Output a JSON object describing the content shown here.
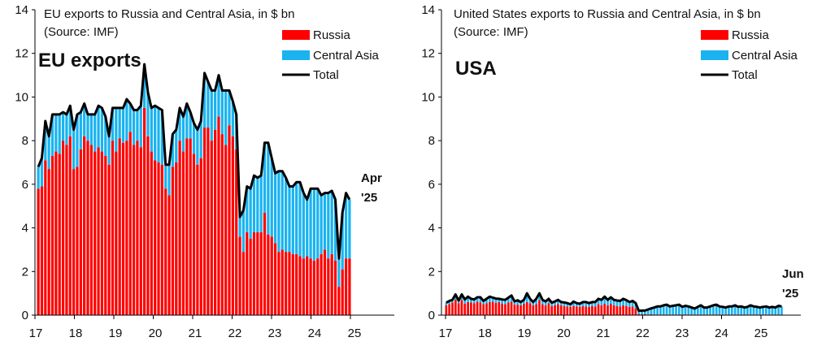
{
  "chart_data": [
    {
      "type": "bar",
      "stacked": true,
      "title": "EU exports to Russia and Central Asia, in $ bn",
      "subtitle": "(Source: IMF)",
      "panel_label": "EU exports",
      "end_label": [
        "Apr",
        "'25"
      ],
      "ylim": [
        0,
        14
      ],
      "yticks": [
        "0",
        "2",
        "4",
        "6",
        "8",
        "10",
        "12",
        "14"
      ],
      "xticks": [
        "17",
        "18",
        "19",
        "20",
        "21",
        "22",
        "23",
        "24",
        "25"
      ],
      "legend": {
        "position": "top-right",
        "entries": [
          "Russia",
          "Central Asia",
          "Total"
        ]
      },
      "series": [
        {
          "name": "Russia",
          "color": "#ff0000",
          "values": [
            5.8,
            5.9,
            7.1,
            6.7,
            7.3,
            7.5,
            7.4,
            8.0,
            7.8,
            8.2,
            6.7,
            6.8,
            7.6,
            8.2,
            8.0,
            7.8,
            7.5,
            7.7,
            7.5,
            7.3,
            6.9,
            8.0,
            7.5,
            8.1,
            7.9,
            8.0,
            8.4,
            7.8,
            8.0,
            7.7,
            9.5,
            8.2,
            7.5,
            7.1,
            7.0,
            6.9,
            5.8,
            5.5,
            6.8,
            7.0,
            8.0,
            7.5,
            8.1,
            8.1,
            7.4,
            6.9,
            7.2,
            8.6,
            8.6,
            8.0,
            8.5,
            9.1,
            8.3,
            7.8,
            8.7,
            8.2,
            7.6,
            3.6,
            2.9,
            3.8,
            3.5,
            3.8,
            3.8,
            3.8,
            4.7,
            3.7,
            3.6,
            3.3,
            2.9,
            3.0,
            2.9,
            2.9,
            2.8,
            2.8,
            2.7,
            2.6,
            2.7,
            2.6,
            2.5,
            2.6,
            2.8,
            3.0,
            2.6,
            2.8,
            2.5,
            1.3,
            2.1,
            2.6,
            2.6
          ]
        },
        {
          "name": "Central Asia",
          "color": "#1ab3f0",
          "values": [
            1.0,
            1.3,
            1.8,
            1.5,
            1.9,
            1.7,
            1.8,
            1.3,
            1.4,
            1.4,
            1.8,
            2.4,
            1.7,
            1.5,
            1.2,
            1.4,
            1.7,
            1.9,
            2.0,
            1.8,
            1.3,
            1.5,
            2.0,
            1.4,
            1.6,
            1.9,
            1.3,
            1.6,
            1.4,
            1.9,
            2.0,
            2.0,
            2.0,
            2.5,
            2.5,
            2.5,
            1.1,
            1.4,
            1.5,
            1.5,
            1.5,
            1.6,
            1.6,
            1.2,
            1.4,
            1.6,
            1.7,
            2.5,
            2.1,
            2.3,
            1.8,
            1.9,
            2.0,
            2.5,
            1.6,
            1.6,
            1.6,
            0.9,
            1.9,
            2.1,
            2.3,
            2.6,
            2.5,
            2.6,
            3.2,
            4.2,
            3.6,
            3.2,
            3.7,
            3.6,
            3.4,
            3.0,
            3.1,
            3.3,
            3.4,
            3.0,
            2.6,
            3.2,
            3.3,
            3.2,
            2.7,
            2.6,
            3.0,
            2.9,
            2.8,
            1.3,
            2.6,
            3.0,
            2.7
          ]
        },
        {
          "name": "Total",
          "color": "#000000",
          "values": [
            6.8,
            7.2,
            8.9,
            8.2,
            9.2,
            9.2,
            9.2,
            9.3,
            9.2,
            9.6,
            8.5,
            9.2,
            9.3,
            9.7,
            9.2,
            9.2,
            9.2,
            9.6,
            9.5,
            9.1,
            8.2,
            9.5,
            9.5,
            9.5,
            9.5,
            9.9,
            9.7,
            9.4,
            9.4,
            9.6,
            11.5,
            10.2,
            9.5,
            9.6,
            9.5,
            9.4,
            6.9,
            6.9,
            8.3,
            8.5,
            9.5,
            9.1,
            9.7,
            9.3,
            8.8,
            8.5,
            8.9,
            11.1,
            10.7,
            10.3,
            10.3,
            11.0,
            10.3,
            10.3,
            10.3,
            9.8,
            9.2,
            4.5,
            4.8,
            5.9,
            5.8,
            6.4,
            6.3,
            6.4,
            7.9,
            7.9,
            7.2,
            6.5,
            6.6,
            6.6,
            6.3,
            5.9,
            5.9,
            6.1,
            6.1,
            5.6,
            5.3,
            5.8,
            5.8,
            5.8,
            5.5,
            5.6,
            5.6,
            5.7,
            5.3,
            2.6,
            4.7,
            5.6,
            5.3
          ]
        }
      ]
    },
    {
      "type": "bar",
      "stacked": true,
      "title": "United States exports to Russia and Central Asia, in $ bn",
      "subtitle": "(Source: IMF)",
      "panel_label": "USA",
      "end_label": [
        "Jun",
        "'25"
      ],
      "ylim": [
        0,
        14
      ],
      "yticks": [
        "0",
        "2",
        "4",
        "6",
        "8",
        "10",
        "12",
        "14"
      ],
      "xticks": [
        "17",
        "18",
        "19",
        "20",
        "21",
        "22",
        "23",
        "24",
        "25"
      ],
      "legend": {
        "position": "top-right",
        "entries": [
          "Russia",
          "Central Asia",
          "Total"
        ]
      },
      "series": [
        {
          "name": "Russia",
          "color": "#ff0000",
          "values": [
            0.45,
            0.5,
            0.58,
            0.72,
            0.55,
            0.7,
            0.52,
            0.6,
            0.58,
            0.55,
            0.62,
            0.58,
            0.5,
            0.55,
            0.6,
            0.62,
            0.56,
            0.6,
            0.52,
            0.5,
            0.58,
            0.62,
            0.48,
            0.48,
            0.45,
            0.52,
            0.6,
            0.55,
            0.45,
            0.5,
            0.7,
            0.5,
            0.45,
            0.55,
            0.42,
            0.45,
            0.5,
            0.45,
            0.42,
            0.4,
            0.38,
            0.42,
            0.4,
            0.38,
            0.42,
            0.4,
            0.38,
            0.42,
            0.4,
            0.5,
            0.45,
            0.52,
            0.45,
            0.52,
            0.45,
            0.42,
            0.4,
            0.45,
            0.42,
            0.38,
            0.4,
            0.3,
            0.05,
            0.04,
            0.04,
            0.03,
            0.04,
            0.03,
            0.03,
            0.03,
            0.03,
            0.03,
            0.03,
            0.03,
            0.03,
            0.03,
            0.03,
            0.03,
            0.03,
            0.03,
            0.03,
            0.03,
            0.03,
            0.03,
            0.03,
            0.03,
            0.03,
            0.03,
            0.03,
            0.03,
            0.03,
            0.03,
            0.03,
            0.03,
            0.03,
            0.03,
            0.03,
            0.03,
            0.03,
            0.03,
            0.03,
            0.03,
            0.03,
            0.03,
            0.03,
            0.03,
            0.03,
            0.03,
            0.03
          ]
        },
        {
          "name": "Central Asia",
          "color": "#1ab3f0",
          "values": [
            0.12,
            0.15,
            0.12,
            0.23,
            0.12,
            0.25,
            0.2,
            0.25,
            0.17,
            0.17,
            0.2,
            0.24,
            0.15,
            0.2,
            0.25,
            0.18,
            0.2,
            0.15,
            0.2,
            0.2,
            0.22,
            0.28,
            0.15,
            0.2,
            0.15,
            0.18,
            0.4,
            0.2,
            0.15,
            0.25,
            0.3,
            0.2,
            0.18,
            0.2,
            0.15,
            0.18,
            0.2,
            0.15,
            0.16,
            0.15,
            0.12,
            0.2,
            0.15,
            0.14,
            0.18,
            0.2,
            0.17,
            0.18,
            0.2,
            0.25,
            0.25,
            0.33,
            0.25,
            0.3,
            0.25,
            0.25,
            0.25,
            0.3,
            0.27,
            0.22,
            0.25,
            0.25,
            0.15,
            0.17,
            0.17,
            0.23,
            0.27,
            0.32,
            0.37,
            0.37,
            0.42,
            0.45,
            0.37,
            0.4,
            0.42,
            0.45,
            0.35,
            0.4,
            0.37,
            0.32,
            0.27,
            0.35,
            0.42,
            0.32,
            0.32,
            0.37,
            0.42,
            0.45,
            0.37,
            0.35,
            0.32,
            0.37,
            0.37,
            0.42,
            0.35,
            0.37,
            0.32,
            0.35,
            0.42,
            0.37,
            0.35,
            0.32,
            0.35,
            0.37,
            0.32,
            0.35,
            0.32,
            0.4,
            0.37
          ]
        },
        {
          "name": "Total",
          "color": "#000000",
          "values": [
            0.57,
            0.65,
            0.7,
            0.95,
            0.67,
            0.95,
            0.72,
            0.85,
            0.75,
            0.72,
            0.82,
            0.82,
            0.65,
            0.75,
            0.85,
            0.8,
            0.76,
            0.75,
            0.72,
            0.7,
            0.8,
            0.9,
            0.63,
            0.68,
            0.6,
            0.7,
            1.0,
            0.75,
            0.6,
            0.75,
            1.0,
            0.7,
            0.63,
            0.75,
            0.57,
            0.63,
            0.7,
            0.6,
            0.58,
            0.55,
            0.5,
            0.62,
            0.55,
            0.52,
            0.6,
            0.6,
            0.55,
            0.6,
            0.6,
            0.75,
            0.7,
            0.85,
            0.7,
            0.82,
            0.7,
            0.67,
            0.65,
            0.75,
            0.69,
            0.6,
            0.65,
            0.55,
            0.2,
            0.21,
            0.21,
            0.26,
            0.31,
            0.35,
            0.4,
            0.4,
            0.45,
            0.48,
            0.4,
            0.43,
            0.45,
            0.48,
            0.38,
            0.43,
            0.4,
            0.35,
            0.3,
            0.38,
            0.45,
            0.35,
            0.35,
            0.4,
            0.45,
            0.48,
            0.4,
            0.38,
            0.35,
            0.4,
            0.4,
            0.45,
            0.38,
            0.4,
            0.35,
            0.38,
            0.45,
            0.4,
            0.38,
            0.35,
            0.38,
            0.4,
            0.35,
            0.38,
            0.35,
            0.43,
            0.4
          ]
        }
      ]
    }
  ]
}
